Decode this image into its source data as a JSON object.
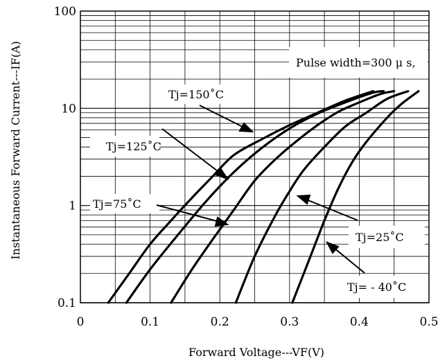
{
  "chart_data": {
    "type": "line",
    "title": "",
    "xlabel": "Forward Voltage---VF(V)",
    "ylabel": "Instantaneous Forward Current---IF(A)",
    "xlim": [
      0,
      0.5
    ],
    "ylim": [
      0.1,
      100
    ],
    "yscale": "log",
    "grid": true,
    "x_ticks": [
      "0",
      "0.1",
      "0.2",
      "0.3",
      "0.4",
      "0.5"
    ],
    "y_ticks": [
      "0.1",
      "1",
      "10",
      "100"
    ],
    "note": "Pulse width=300 μ s,",
    "series": [
      {
        "name": "Tj=150˚C",
        "x": [
          0.04,
          0.07,
          0.1,
          0.13,
          0.16,
          0.19,
          0.22,
          0.26,
          0.3,
          0.34,
          0.38,
          0.42
        ],
        "y": [
          0.1,
          0.2,
          0.4,
          0.7,
          1.2,
          2.0,
          3.3,
          4.8,
          6.7,
          9.0,
          12.0,
          15.0
        ]
      },
      {
        "name": "Tj=125˚C",
        "x": [
          0.066,
          0.1,
          0.14,
          0.18,
          0.22,
          0.26,
          0.3,
          0.34,
          0.38,
          0.42,
          0.435
        ],
        "y": [
          0.1,
          0.22,
          0.5,
          1.1,
          2.2,
          3.9,
          6.2,
          8.8,
          11.5,
          14.5,
          15.0
        ]
      },
      {
        "name": "Tj=75˚C",
        "x": [
          0.13,
          0.16,
          0.19,
          0.22,
          0.25,
          0.28,
          0.31,
          0.34,
          0.37,
          0.4,
          0.43,
          0.45
        ],
        "y": [
          0.1,
          0.22,
          0.45,
          0.9,
          1.8,
          3.0,
          4.6,
          6.7,
          9.2,
          11.5,
          14.0,
          15.0
        ]
      },
      {
        "name": "Tj=25˚C",
        "x": [
          0.223,
          0.25,
          0.28,
          0.3,
          0.32,
          0.35,
          0.38,
          0.41,
          0.44,
          0.47
        ],
        "y": [
          0.1,
          0.3,
          0.8,
          1.4,
          2.3,
          4.0,
          6.5,
          9.0,
          12.5,
          15.0
        ]
      },
      {
        "name": "Tj= - 40˚C",
        "x": [
          0.304,
          0.33,
          0.35,
          0.37,
          0.39,
          0.41,
          0.44,
          0.46,
          0.485
        ],
        "y": [
          0.1,
          0.3,
          0.7,
          1.5,
          2.8,
          4.5,
          8.0,
          11.0,
          15.0
        ]
      }
    ]
  }
}
